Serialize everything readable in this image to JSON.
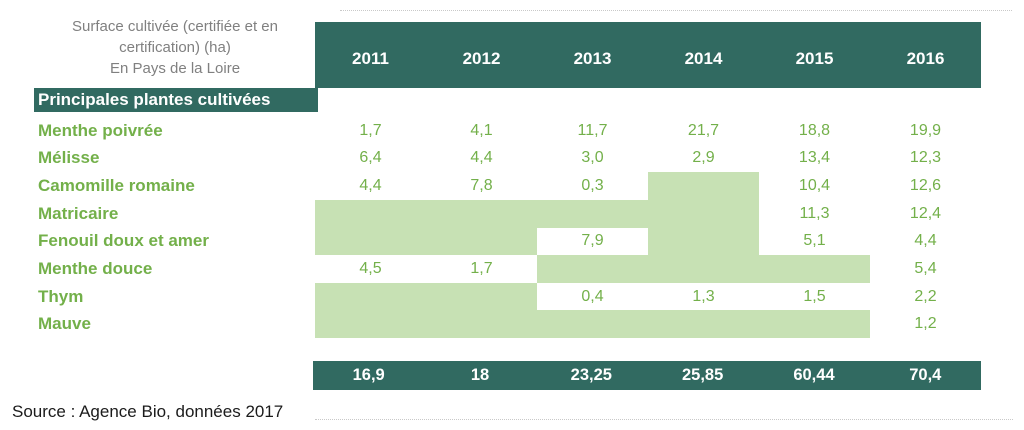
{
  "header": {
    "title_lines": [
      "Surface cultivée (certifiée et en",
      "certification) (ha)",
      "En Pays de la Loire"
    ],
    "years": [
      "2011",
      "2012",
      "2013",
      "2014",
      "2015",
      "2016"
    ],
    "section_label": "Principales plantes cultivées"
  },
  "rows": [
    {
      "label": "Menthe poivrée",
      "values": [
        "1,7",
        "4,1",
        "11,7",
        "21,7",
        "18,8",
        "19,9"
      ],
      "shaded": [
        false,
        false,
        false,
        false,
        false,
        false
      ]
    },
    {
      "label": "Mélisse",
      "values": [
        "6,4",
        "4,4",
        "3,0",
        "2,9",
        "13,4",
        "12,3"
      ],
      "shaded": [
        false,
        false,
        false,
        false,
        false,
        false
      ]
    },
    {
      "label": "Camomille romaine",
      "values": [
        "4,4",
        "7,8",
        "0,3",
        "",
        "10,4",
        "12,6"
      ],
      "shaded": [
        false,
        false,
        false,
        true,
        false,
        false
      ]
    },
    {
      "label": "Matricaire",
      "values": [
        "",
        "",
        "",
        "",
        "11,3",
        "12,4"
      ],
      "shaded": [
        true,
        true,
        true,
        true,
        false,
        false
      ]
    },
    {
      "label": "Fenouil doux et amer",
      "values": [
        "",
        "",
        "7,9",
        "",
        "5,1",
        "4,4"
      ],
      "shaded": [
        true,
        true,
        false,
        true,
        false,
        false
      ]
    },
    {
      "label": "Menthe douce",
      "values": [
        "4,5",
        "1,7",
        "",
        "",
        "",
        "5,4"
      ],
      "shaded": [
        false,
        false,
        true,
        true,
        true,
        false
      ]
    },
    {
      "label": "Thym",
      "values": [
        "",
        "",
        "0,4",
        "1,3",
        "1,5",
        "2,2"
      ],
      "shaded": [
        true,
        true,
        false,
        false,
        false,
        false
      ]
    },
    {
      "label": "Mauve",
      "values": [
        "",
        "",
        "",
        "",
        "",
        "1,2"
      ],
      "shaded": [
        true,
        true,
        true,
        true,
        true,
        false
      ]
    }
  ],
  "totals": {
    "values": [
      "16,9",
      "18",
      "23,25",
      "25,85",
      "60,44",
      "70,4"
    ]
  },
  "source": "Source : Agence Bio, données 2017",
  "colors": {
    "teal": "#316A61",
    "light_green": "#C7E1B4",
    "green_text": "#73B04A",
    "gray_text": "#808080"
  },
  "chart_data": {
    "type": "table",
    "title": "Surface cultivée (certifiée et en certification) (ha) En Pays de la Loire",
    "section": "Principales plantes cultivées",
    "columns": [
      "2011",
      "2012",
      "2013",
      "2014",
      "2015",
      "2016"
    ],
    "rows": [
      {
        "label": "Menthe poivrée",
        "values": [
          1.7,
          4.1,
          11.7,
          21.7,
          18.8,
          19.9
        ]
      },
      {
        "label": "Mélisse",
        "values": [
          6.4,
          4.4,
          3.0,
          2.9,
          13.4,
          12.3
        ]
      },
      {
        "label": "Camomille romaine",
        "values": [
          4.4,
          7.8,
          0.3,
          null,
          10.4,
          12.6
        ]
      },
      {
        "label": "Matricaire",
        "values": [
          null,
          null,
          null,
          null,
          11.3,
          12.4
        ]
      },
      {
        "label": "Fenouil doux et amer",
        "values": [
          null,
          null,
          7.9,
          null,
          5.1,
          4.4
        ]
      },
      {
        "label": "Menthe douce",
        "values": [
          4.5,
          1.7,
          null,
          null,
          null,
          5.4
        ]
      },
      {
        "label": "Thym",
        "values": [
          null,
          null,
          0.4,
          1.3,
          1.5,
          2.2
        ]
      },
      {
        "label": "Mauve",
        "values": [
          null,
          null,
          null,
          null,
          null,
          1.2
        ]
      }
    ],
    "totals": [
      16.9,
      18,
      23.25,
      25.85,
      60.44,
      70.4
    ],
    "missing_cell_style": "light green fill (#C7E1B4) indicates no value",
    "source": "Source : Agence Bio, données 2017"
  }
}
